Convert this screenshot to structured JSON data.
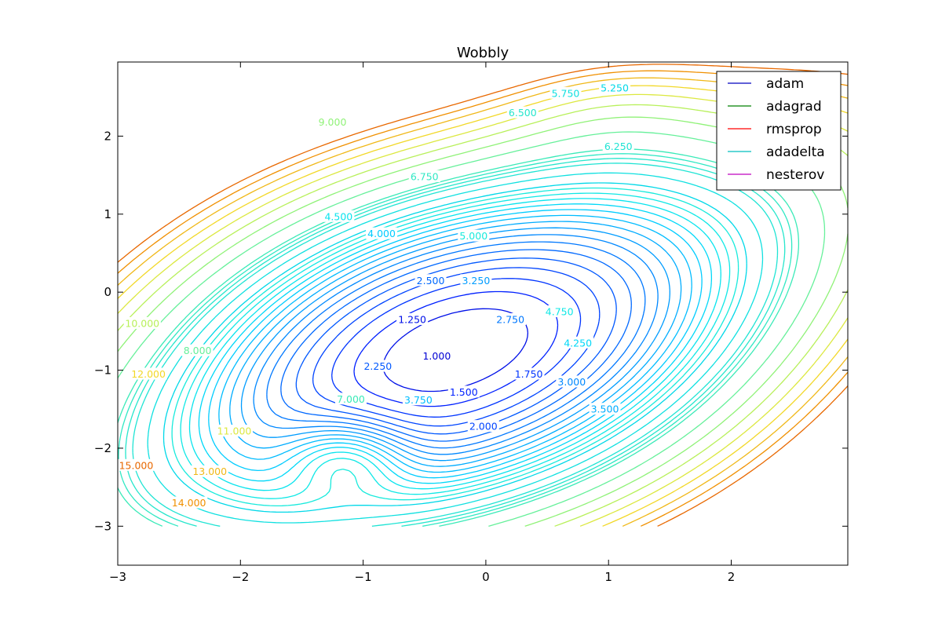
{
  "chart_data": {
    "type": "contour",
    "title": "Wobbly",
    "xlabel": "",
    "ylabel": "",
    "xlim": [
      -3,
      2.95
    ],
    "ylim": [
      -3.5,
      2.95
    ],
    "x_ticks": [
      -3,
      -2,
      -1,
      0,
      1,
      2
    ],
    "x_tick_labels": [
      "−3",
      "−2",
      "−1",
      "0",
      "1",
      "2"
    ],
    "y_ticks": [
      -3,
      -2,
      -1,
      0,
      1,
      2
    ],
    "y_tick_labels": [
      "−3",
      "−2",
      "−1",
      "0",
      "1",
      "2"
    ],
    "grid": false,
    "contour_domain": {
      "x": [
        -3,
        2.95
      ],
      "y": [
        -3,
        2.95
      ]
    },
    "minimum": {
      "x": -0.25,
      "y": -0.75
    },
    "contour_levels": [
      {
        "value": 1.0,
        "label": "1.000",
        "color": "#0000d4",
        "label_at": [
          -0.4,
          -0.82
        ]
      },
      {
        "value": 1.25,
        "label": "1.250",
        "color": "#0010e8",
        "label_at": [
          -0.6,
          -0.35
        ]
      },
      {
        "value": 1.5,
        "label": "1.500",
        "color": "#0020ff",
        "label_at": [
          -0.18,
          -1.28
        ]
      },
      {
        "value": 1.75,
        "label": "1.750",
        "color": "#0034ff",
        "label_at": [
          0.35,
          -1.05
        ]
      },
      {
        "value": 2.0,
        "label": "2.000",
        "color": "#0044ff",
        "label_at": [
          -0.02,
          -1.72
        ]
      },
      {
        "value": 2.25,
        "label": "2.250",
        "color": "#0058ff",
        "label_at": [
          -0.88,
          -0.95
        ]
      },
      {
        "value": 2.5,
        "label": "2.500",
        "color": "#0068ff",
        "label_at": [
          -0.45,
          0.15
        ]
      },
      {
        "value": 2.75,
        "label": "2.750",
        "color": "#0078ff",
        "label_at": [
          0.2,
          -0.35
        ]
      },
      {
        "value": 3.0,
        "label": "3.000",
        "color": "#0088ff",
        "label_at": [
          0.7,
          -1.15
        ]
      },
      {
        "value": 3.25,
        "label": "3.250",
        "color": "#009cff",
        "label_at": [
          -0.08,
          0.15
        ]
      },
      {
        "value": 3.5,
        "label": "3.500",
        "color": "#00acff",
        "label_at": [
          0.97,
          -1.5
        ]
      },
      {
        "value": 3.75,
        "label": "3.750",
        "color": "#00bcff",
        "label_at": [
          -0.55,
          -1.38
        ]
      },
      {
        "value": 4.0,
        "label": "4.000",
        "color": "#00ccff",
        "label_at": [
          -0.85,
          0.75
        ]
      },
      {
        "value": 4.25,
        "label": "4.250",
        "color": "#00d8f8",
        "label_at": [
          0.75,
          -0.65
        ]
      },
      {
        "value": 4.5,
        "label": "4.500",
        "color": "#08e4ee",
        "label_at": [
          -1.2,
          0.97
        ]
      },
      {
        "value": 4.75,
        "label": "4.750",
        "color": "#10e8e6",
        "label_at": [
          0.6,
          -0.25
        ]
      },
      {
        "value": 5.0,
        "label": "5.000",
        "color": "#18eadc",
        "label_at": [
          -0.1,
          0.72
        ]
      },
      {
        "value": 5.25,
        "label": "5.250",
        "color": "#00d8e8",
        "label_at": [
          1.05,
          2.62
        ]
      },
      {
        "value": 5.75,
        "label": "5.750",
        "color": "#10e0e0",
        "label_at": [
          0.65,
          2.55
        ]
      },
      {
        "value": 6.25,
        "label": "6.250",
        "color": "#20e4d4",
        "label_at": [
          1.08,
          1.87
        ]
      },
      {
        "value": 6.5,
        "label": "6.500",
        "color": "#26e6cc",
        "label_at": [
          0.3,
          2.3
        ]
      },
      {
        "value": 6.75,
        "label": "6.750",
        "color": "#30e8c4",
        "label_at": [
          -0.5,
          1.48
        ]
      },
      {
        "value": 7.0,
        "label": "7.000",
        "color": "#3aeab8",
        "label_at": [
          -1.1,
          -1.37
        ]
      },
      {
        "value": 8.0,
        "label": "8.000",
        "color": "#66f09a",
        "label_at": [
          -2.35,
          -0.75
        ]
      },
      {
        "value": 9.0,
        "label": "9.000",
        "color": "#90f278",
        "label_at": [
          -1.25,
          2.18
        ]
      },
      {
        "value": 10.0,
        "label": "10.000",
        "color": "#b8f05a",
        "label_at": [
          -2.8,
          -0.4
        ]
      },
      {
        "value": 11.0,
        "label": "11.000",
        "color": "#dce840",
        "label_at": [
          -2.05,
          -1.78
        ]
      },
      {
        "value": 12.0,
        "label": "12.000",
        "color": "#f2d828",
        "label_at": [
          -2.75,
          -1.05
        ]
      },
      {
        "value": 13.0,
        "label": "13.000",
        "color": "#f0b818",
        "label_at": [
          -2.25,
          -2.3
        ]
      },
      {
        "value": 14.0,
        "label": "14.000",
        "color": "#f09000",
        "label_at": [
          -2.42,
          -2.7
        ]
      },
      {
        "value": 15.0,
        "label": "15.000",
        "color": "#e86800",
        "label_at": [
          -2.85,
          -2.22
        ]
      }
    ],
    "legend": {
      "placement": "top-right",
      "entries": [
        {
          "label": "adam",
          "color": "#0000bf"
        },
        {
          "label": "adagrad",
          "color": "#008000"
        },
        {
          "label": "rmsprop",
          "color": "#ff0000"
        },
        {
          "label": "adadelta",
          "color": "#00bfbf"
        },
        {
          "label": "nesterov",
          "color": "#bf00bf"
        }
      ]
    }
  }
}
